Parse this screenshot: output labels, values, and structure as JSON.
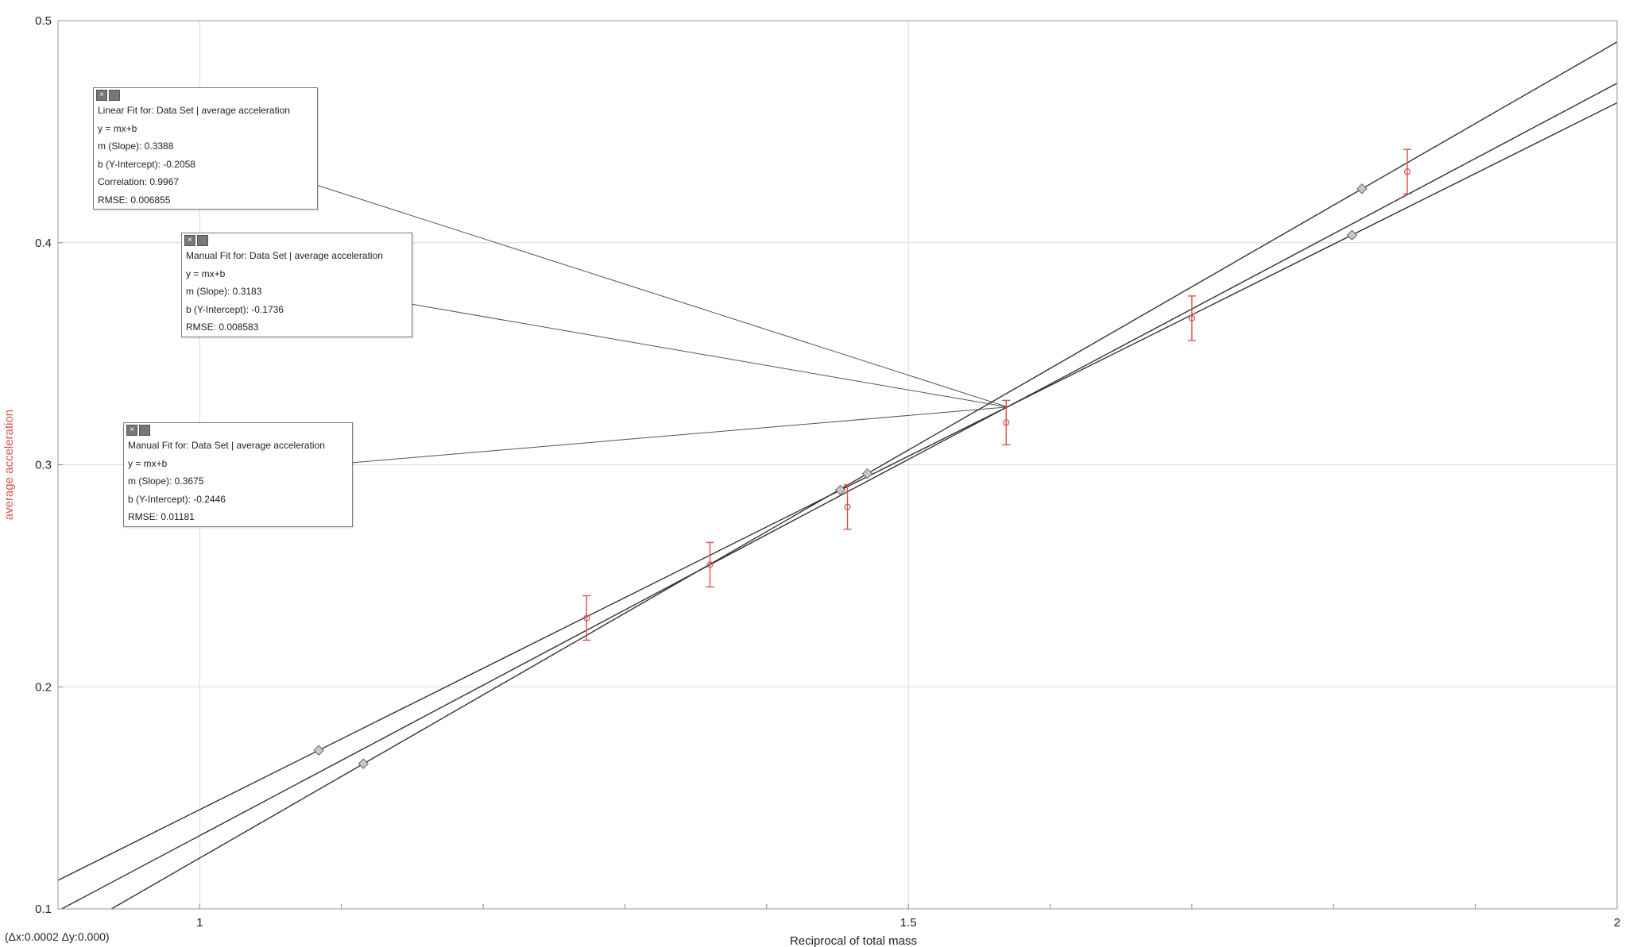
{
  "chart_data": {
    "type": "scatter",
    "xlabel": "Reciprocal of total mass",
    "ylabel": "average acceleration",
    "xlim": [
      0.9,
      2.0
    ],
    "ylim": [
      0.1,
      0.5
    ],
    "x_ticks": [
      1,
      1.5,
      2
    ],
    "x_tick_labels": [
      "1",
      "1.5",
      "2"
    ],
    "y_ticks": [
      0.1,
      0.2,
      0.3,
      0.4,
      0.5
    ],
    "y_tick_labels": [
      "0.1",
      "0.2",
      "0.3",
      "0.4",
      "0.5"
    ],
    "grid": true,
    "points": [
      {
        "x": 1.273,
        "y": 0.231,
        "err": 0.01
      },
      {
        "x": 1.36,
        "y": 0.255,
        "err": 0.01
      },
      {
        "x": 1.457,
        "y": 0.281,
        "err": 0.01
      },
      {
        "x": 1.569,
        "y": 0.319,
        "err": 0.01
      },
      {
        "x": 1.7,
        "y": 0.366,
        "err": 0.01
      },
      {
        "x": 1.852,
        "y": 0.432,
        "err": 0.01
      }
    ],
    "fits": [
      {
        "slope": 0.3388,
        "intercept": -0.2058
      },
      {
        "slope": 0.3183,
        "intercept": -0.1736
      },
      {
        "slope": 0.3675,
        "intercept": -0.2446
      }
    ],
    "manual_fit_handles": [
      {
        "fit": 1,
        "x": 1.084,
        "y": 0.1714
      },
      {
        "fit": 1,
        "x": 1.452,
        "y": 0.2886
      },
      {
        "fit": 1,
        "x": 1.813,
        "y": 0.4034
      },
      {
        "fit": 2,
        "x": 1.1155,
        "y": 0.1654
      },
      {
        "fit": 2,
        "x": 1.471,
        "y": 0.296
      },
      {
        "fit": 2,
        "x": 1.82,
        "y": 0.4243
      }
    ]
  },
  "fit_boxes": [
    {
      "title": "Linear Fit for: Data Set | average acceleration",
      "equation": "y = mx+b",
      "slope": "m (Slope): 0.3388",
      "intercept": "b (Y-Intercept): -0.2058",
      "correlation": "Correlation: 0.9967",
      "rmse": "RMSE: 0.006855"
    },
    {
      "title": "Manual Fit for: Data Set | average acceleration",
      "equation": "y = mx+b",
      "slope": "m (Slope): 0.3183",
      "intercept": "b (Y-Intercept): -0.1736",
      "rmse": "RMSE: 0.008583"
    },
    {
      "title": "Manual Fit for: Data Set | average acceleration",
      "equation": "y = mx+b",
      "slope": "m (Slope): 0.3675",
      "intercept": "b (Y-Intercept): -0.2446",
      "rmse": "RMSE: 0.01181"
    }
  ],
  "status": {
    "delta_readout": "(Δx:0.0002 Δy:0.000)"
  },
  "colors": {
    "fit_line": "#333333",
    "data": "#d9534f",
    "grid": "#dcdcdc"
  }
}
